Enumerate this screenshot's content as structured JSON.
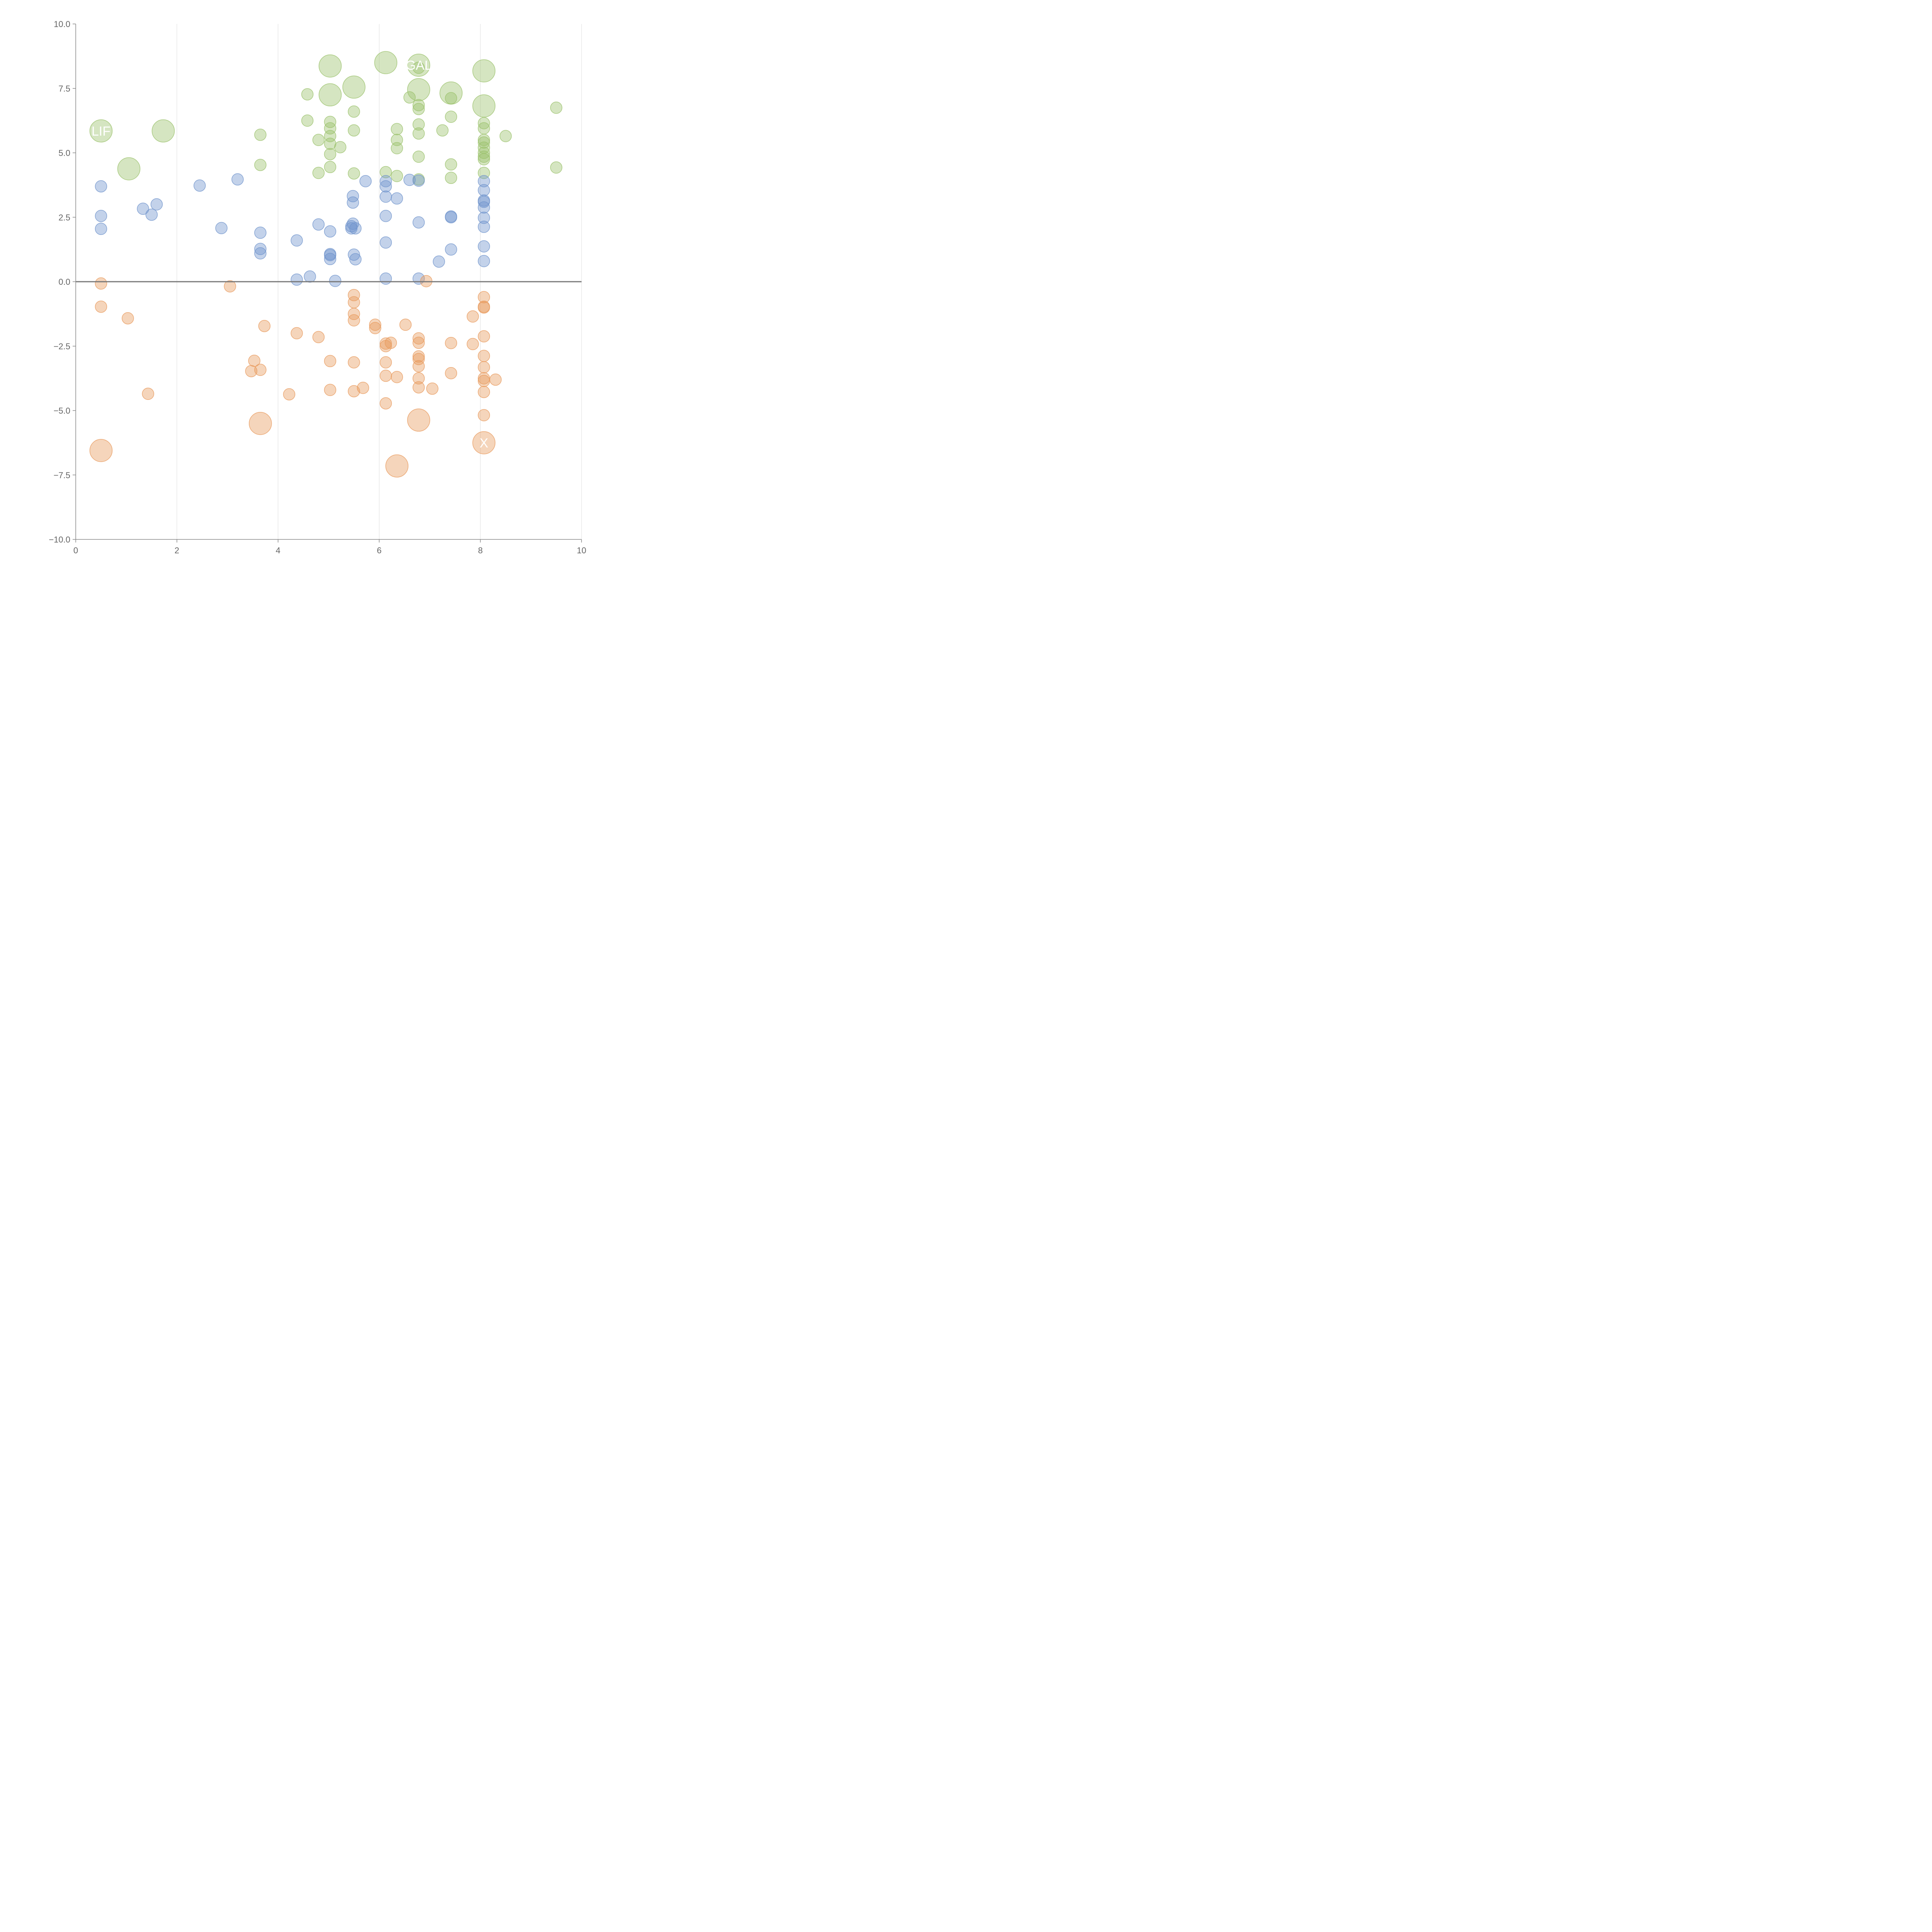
{
  "chart_data": {
    "type": "scatter",
    "title": "",
    "xlabel": "",
    "ylabel": "",
    "xlim": [
      0,
      10
    ],
    "ylim": [
      -10,
      10
    ],
    "x_ticks": [
      "0",
      "2",
      "4",
      "6",
      "8",
      "10"
    ],
    "y_ticks": [
      "−10.0",
      "−7.5",
      "−5.0",
      "−2.5",
      "0.0",
      "2.5",
      "5.0",
      "7.5",
      "10.0"
    ],
    "grid": "vertical",
    "zero_line": true,
    "colors": {
      "green": "#9bc26b",
      "blue": "#6f93cc",
      "orange": "#e89a5c"
    },
    "series": [
      {
        "color": "green",
        "points": [
          {
            "x": 0.5,
            "y": 5.85,
            "r": "large"
          },
          {
            "x": 1.05,
            "y": 4.38,
            "r": "large"
          },
          {
            "x": 1.73,
            "y": 5.85,
            "r": "large"
          },
          {
            "x": 3.65,
            "y": 5.7
          },
          {
            "x": 3.65,
            "y": 4.53
          },
          {
            "x": 4.58,
            "y": 7.27
          },
          {
            "x": 4.58,
            "y": 6.25
          },
          {
            "x": 4.8,
            "y": 5.5
          },
          {
            "x": 4.8,
            "y": 4.22
          },
          {
            "x": 5.03,
            "y": 8.37,
            "r": "large"
          },
          {
            "x": 5.03,
            "y": 7.25,
            "r": "large"
          },
          {
            "x": 5.03,
            "y": 6.2
          },
          {
            "x": 5.03,
            "y": 5.95
          },
          {
            "x": 5.03,
            "y": 5.65
          },
          {
            "x": 5.03,
            "y": 5.35
          },
          {
            "x": 5.03,
            "y": 4.95
          },
          {
            "x": 5.03,
            "y": 4.45
          },
          {
            "x": 5.23,
            "y": 5.22
          },
          {
            "x": 5.5,
            "y": 7.55,
            "r": "large"
          },
          {
            "x": 5.5,
            "y": 6.6
          },
          {
            "x": 5.5,
            "y": 5.87
          },
          {
            "x": 5.5,
            "y": 4.2
          },
          {
            "x": 6.13,
            "y": 8.5,
            "r": "large"
          },
          {
            "x": 6.13,
            "y": 4.25
          },
          {
            "x": 6.35,
            "y": 5.92
          },
          {
            "x": 6.35,
            "y": 5.5
          },
          {
            "x": 6.35,
            "y": 5.18
          },
          {
            "x": 6.35,
            "y": 4.1
          },
          {
            "x": 6.6,
            "y": 7.15
          },
          {
            "x": 6.78,
            "y": 8.4,
            "r": "large"
          },
          {
            "x": 6.78,
            "y": 7.45,
            "r": "large"
          },
          {
            "x": 6.78,
            "y": 8.3
          },
          {
            "x": 6.78,
            "y": 6.85
          },
          {
            "x": 6.78,
            "y": 6.7
          },
          {
            "x": 6.78,
            "y": 6.1
          },
          {
            "x": 6.78,
            "y": 5.75
          },
          {
            "x": 6.78,
            "y": 4.85
          },
          {
            "x": 6.78,
            "y": 3.97
          },
          {
            "x": 7.25,
            "y": 5.87
          },
          {
            "x": 7.42,
            "y": 7.32,
            "r": "large"
          },
          {
            "x": 7.42,
            "y": 7.12
          },
          {
            "x": 7.42,
            "y": 6.4
          },
          {
            "x": 7.42,
            "y": 4.55
          },
          {
            "x": 7.42,
            "y": 4.03
          },
          {
            "x": 8.07,
            "y": 8.18,
            "r": "large"
          },
          {
            "x": 8.07,
            "y": 6.82,
            "r": "large"
          },
          {
            "x": 8.07,
            "y": 6.15
          },
          {
            "x": 8.07,
            "y": 5.95
          },
          {
            "x": 8.07,
            "y": 5.5
          },
          {
            "x": 8.07,
            "y": 5.4
          },
          {
            "x": 8.07,
            "y": 5.2
          },
          {
            "x": 8.07,
            "y": 5.0
          },
          {
            "x": 8.07,
            "y": 4.85
          },
          {
            "x": 8.07,
            "y": 4.75
          },
          {
            "x": 8.07,
            "y": 4.22
          },
          {
            "x": 8.5,
            "y": 5.65
          },
          {
            "x": 9.5,
            "y": 6.75
          },
          {
            "x": 9.5,
            "y": 4.43
          }
        ]
      },
      {
        "color": "blue",
        "points": [
          {
            "x": 0.5,
            "y": 3.7
          },
          {
            "x": 0.5,
            "y": 2.55
          },
          {
            "x": 0.5,
            "y": 2.05
          },
          {
            "x": 1.33,
            "y": 2.83
          },
          {
            "x": 1.5,
            "y": 2.6
          },
          {
            "x": 1.6,
            "y": 3.0
          },
          {
            "x": 2.45,
            "y": 3.73
          },
          {
            "x": 2.88,
            "y": 2.08
          },
          {
            "x": 3.2,
            "y": 3.97
          },
          {
            "x": 3.65,
            "y": 1.9
          },
          {
            "x": 3.65,
            "y": 1.27
          },
          {
            "x": 3.65,
            "y": 1.1
          },
          {
            "x": 4.37,
            "y": 1.6
          },
          {
            "x": 4.37,
            "y": 0.08
          },
          {
            "x": 4.63,
            "y": 0.2
          },
          {
            "x": 4.8,
            "y": 2.22
          },
          {
            "x": 5.03,
            "y": 1.95
          },
          {
            "x": 5.03,
            "y": 1.07
          },
          {
            "x": 5.03,
            "y": 1.03
          },
          {
            "x": 5.03,
            "y": 0.88
          },
          {
            "x": 5.13,
            "y": 0.03
          },
          {
            "x": 5.48,
            "y": 3.32
          },
          {
            "x": 5.48,
            "y": 3.07
          },
          {
            "x": 5.48,
            "y": 2.25
          },
          {
            "x": 5.45,
            "y": 2.15
          },
          {
            "x": 5.45,
            "y": 2.07
          },
          {
            "x": 5.53,
            "y": 2.07
          },
          {
            "x": 5.5,
            "y": 1.05
          },
          {
            "x": 5.53,
            "y": 0.87
          },
          {
            "x": 5.73,
            "y": 3.9
          },
          {
            "x": 6.13,
            "y": 3.9
          },
          {
            "x": 6.13,
            "y": 3.7
          },
          {
            "x": 6.13,
            "y": 3.3
          },
          {
            "x": 6.13,
            "y": 2.55
          },
          {
            "x": 6.13,
            "y": 1.52
          },
          {
            "x": 6.13,
            "y": 0.12
          },
          {
            "x": 6.35,
            "y": 3.23
          },
          {
            "x": 6.6,
            "y": 3.95
          },
          {
            "x": 6.78,
            "y": 3.92
          },
          {
            "x": 6.78,
            "y": 2.3
          },
          {
            "x": 6.78,
            "y": 0.12
          },
          {
            "x": 7.18,
            "y": 0.78
          },
          {
            "x": 7.42,
            "y": 2.53
          },
          {
            "x": 7.42,
            "y": 2.5
          },
          {
            "x": 7.42,
            "y": 1.25
          },
          {
            "x": 8.07,
            "y": 3.9
          },
          {
            "x": 8.07,
            "y": 3.55
          },
          {
            "x": 8.07,
            "y": 3.15
          },
          {
            "x": 8.07,
            "y": 3.1
          },
          {
            "x": 8.07,
            "y": 2.88
          },
          {
            "x": 8.07,
            "y": 2.48
          },
          {
            "x": 8.07,
            "y": 2.13
          },
          {
            "x": 8.07,
            "y": 1.37
          },
          {
            "x": 8.07,
            "y": 0.8
          }
        ]
      },
      {
        "color": "orange",
        "points": [
          {
            "x": 0.5,
            "y": -0.07
          },
          {
            "x": 0.5,
            "y": -0.97
          },
          {
            "x": 0.5,
            "y": -6.55,
            "r": "large"
          },
          {
            "x": 1.03,
            "y": -1.42
          },
          {
            "x": 1.43,
            "y": -4.35
          },
          {
            "x": 3.05,
            "y": -0.18
          },
          {
            "x": 3.47,
            "y": -3.47
          },
          {
            "x": 3.53,
            "y": -3.07
          },
          {
            "x": 3.65,
            "y": -3.42
          },
          {
            "x": 3.65,
            "y": -5.5,
            "r": "large"
          },
          {
            "x": 3.73,
            "y": -1.72
          },
          {
            "x": 4.22,
            "y": -4.37
          },
          {
            "x": 4.37,
            "y": -2.0
          },
          {
            "x": 4.8,
            "y": -2.15
          },
          {
            "x": 5.03,
            "y": -3.08
          },
          {
            "x": 5.03,
            "y": -4.2
          },
          {
            "x": 5.5,
            "y": -0.52
          },
          {
            "x": 5.5,
            "y": -0.8
          },
          {
            "x": 5.5,
            "y": -1.25
          },
          {
            "x": 5.5,
            "y": -1.5
          },
          {
            "x": 5.5,
            "y": -3.13
          },
          {
            "x": 5.5,
            "y": -4.25
          },
          {
            "x": 5.68,
            "y": -4.12
          },
          {
            "x": 5.92,
            "y": -1.67
          },
          {
            "x": 5.92,
            "y": -1.8
          },
          {
            "x": 6.13,
            "y": -2.4
          },
          {
            "x": 6.13,
            "y": -2.5
          },
          {
            "x": 6.23,
            "y": -2.37
          },
          {
            "x": 6.13,
            "y": -3.13
          },
          {
            "x": 6.13,
            "y": -3.65
          },
          {
            "x": 6.13,
            "y": -4.72
          },
          {
            "x": 6.35,
            "y": -3.7
          },
          {
            "x": 6.35,
            "y": -7.15,
            "r": "large"
          },
          {
            "x": 6.52,
            "y": -1.67
          },
          {
            "x": 6.78,
            "y": -2.2
          },
          {
            "x": 6.78,
            "y": -2.37
          },
          {
            "x": 6.78,
            "y": -2.9
          },
          {
            "x": 6.78,
            "y": -3.0
          },
          {
            "x": 6.78,
            "y": -3.28
          },
          {
            "x": 6.78,
            "y": -3.75
          },
          {
            "x": 6.78,
            "y": -4.1
          },
          {
            "x": 6.78,
            "y": -5.37,
            "r": "large"
          },
          {
            "x": 6.93,
            "y": 0.02
          },
          {
            "x": 7.05,
            "y": -4.15
          },
          {
            "x": 7.42,
            "y": -2.38
          },
          {
            "x": 7.42,
            "y": -3.55
          },
          {
            "x": 7.85,
            "y": -2.42
          },
          {
            "x": 7.85,
            "y": -1.35
          },
          {
            "x": 8.07,
            "y": -0.6
          },
          {
            "x": 8.07,
            "y": -0.97
          },
          {
            "x": 8.07,
            "y": -1.0
          },
          {
            "x": 8.07,
            "y": -2.12
          },
          {
            "x": 8.07,
            "y": -2.88
          },
          {
            "x": 8.07,
            "y": -3.32
          },
          {
            "x": 8.07,
            "y": -3.75
          },
          {
            "x": 8.07,
            "y": -3.85
          },
          {
            "x": 8.07,
            "y": -4.28
          },
          {
            "x": 8.07,
            "y": -5.18
          },
          {
            "x": 8.07,
            "y": -6.25,
            "r": "large"
          },
          {
            "x": 8.3,
            "y": -3.8
          }
        ]
      }
    ],
    "annotations": [
      {
        "text": "LIF",
        "x": 0.5,
        "y": 5.85
      },
      {
        "text": "GAL",
        "x": 6.78,
        "y": 8.4
      },
      {
        "text": "X",
        "x": 8.07,
        "y": -6.25
      }
    ]
  }
}
